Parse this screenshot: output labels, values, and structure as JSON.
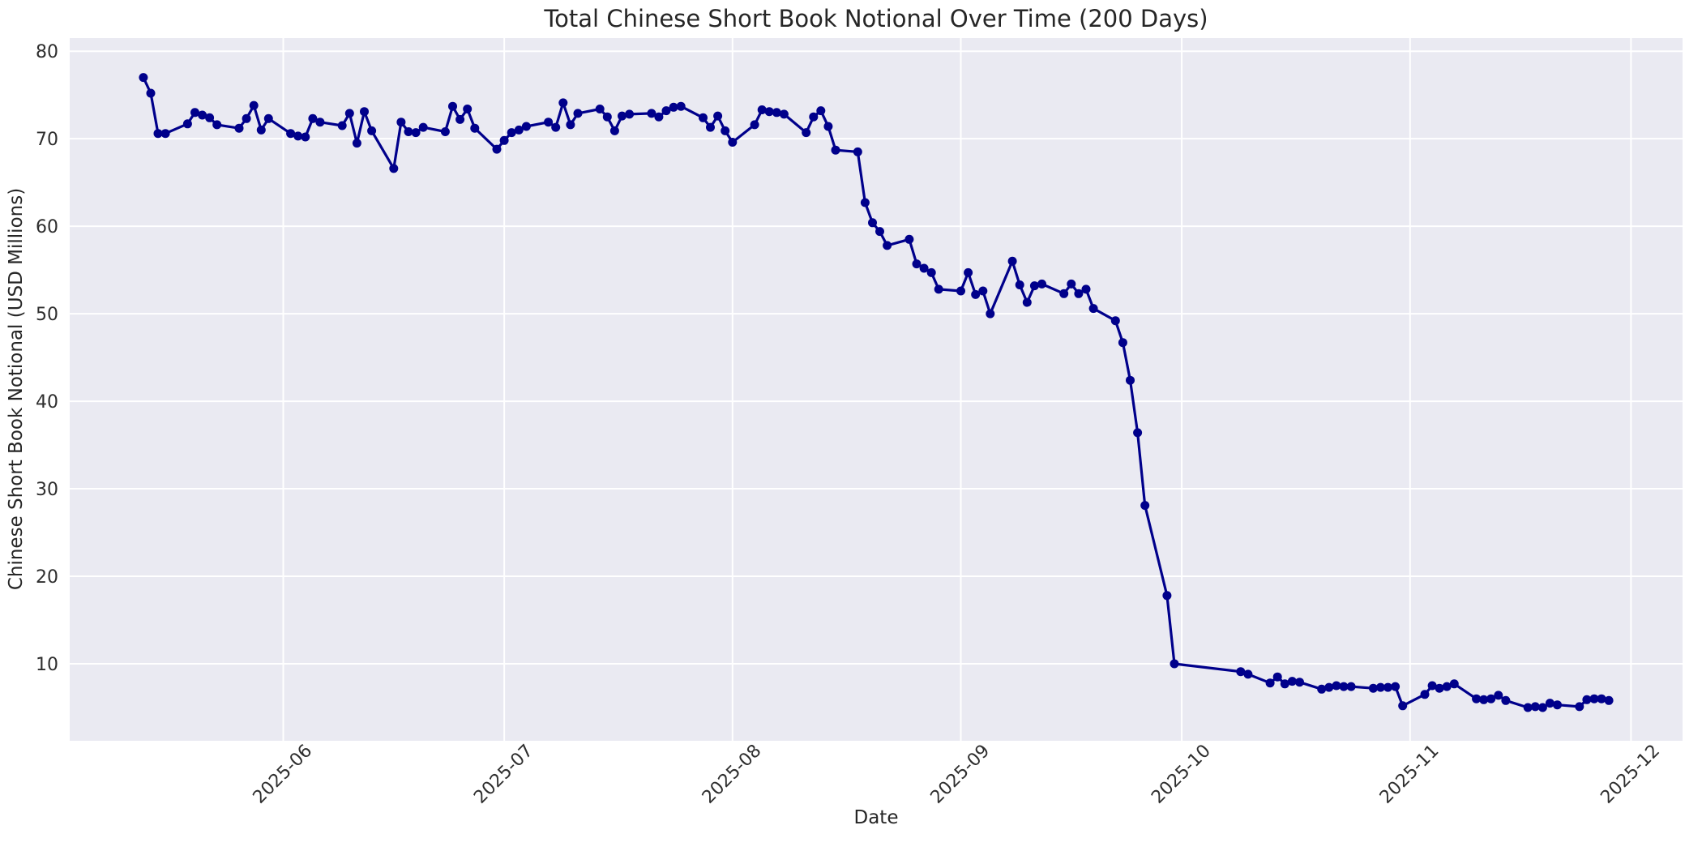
{
  "figure": {
    "background": "#ffffff",
    "plot_background": "#eaeaf2",
    "grid_color": "#ffffff",
    "text_color": "#262626",
    "line_color": "#00008b",
    "marker_color": "#00008b"
  },
  "title": "Total Chinese Short Book Notional Over Time (200 Days)",
  "axes": {
    "xlabel": "Date",
    "ylabel": "Chinese Short Book Notional (USD Millions)",
    "x_tick_labels": [
      "2025-06",
      "2025-07",
      "2025-08",
      "2025-09",
      "2025-10",
      "2025-11",
      "2025-12"
    ],
    "x_tick_dates": [
      "2025-06-01",
      "2025-07-01",
      "2025-08-01",
      "2025-09-01",
      "2025-10-01",
      "2025-11-01",
      "2025-12-01"
    ],
    "y_tick_values": [
      10,
      20,
      30,
      40,
      50,
      60,
      70,
      80
    ],
    "x_range": [
      "2025-05-03",
      "2025-12-08"
    ],
    "y_range": [
      1.2,
      81.5
    ],
    "x_tick_rotation": -45,
    "grid": true
  },
  "chart_data": {
    "type": "line",
    "title": "Total Chinese Short Book Notional Over Time (200 Days)",
    "xlabel": "Date",
    "ylabel": "Chinese Short Book Notional (USD Millions)",
    "legend": false,
    "ylim": [
      1.2,
      81.5
    ],
    "x": [
      "2025-05-13",
      "2025-05-14",
      "2025-05-15",
      "2025-05-16",
      "2025-05-19",
      "2025-05-20",
      "2025-05-21",
      "2025-05-22",
      "2025-05-23",
      "2025-05-26",
      "2025-05-27",
      "2025-05-28",
      "2025-05-29",
      "2025-05-30",
      "2025-06-02",
      "2025-06-03",
      "2025-06-04",
      "2025-06-05",
      "2025-06-06",
      "2025-06-09",
      "2025-06-10",
      "2025-06-11",
      "2025-06-12",
      "2025-06-13",
      "2025-06-16",
      "2025-06-17",
      "2025-06-18",
      "2025-06-19",
      "2025-06-20",
      "2025-06-23",
      "2025-06-24",
      "2025-06-25",
      "2025-06-26",
      "2025-06-27",
      "2025-06-30",
      "2025-07-01",
      "2025-07-02",
      "2025-07-03",
      "2025-07-04",
      "2025-07-07",
      "2025-07-08",
      "2025-07-09",
      "2025-07-10",
      "2025-07-11",
      "2025-07-14",
      "2025-07-15",
      "2025-07-16",
      "2025-07-17",
      "2025-07-18",
      "2025-07-21",
      "2025-07-22",
      "2025-07-23",
      "2025-07-24",
      "2025-07-25",
      "2025-07-28",
      "2025-07-29",
      "2025-07-30",
      "2025-07-31",
      "2025-08-01",
      "2025-08-04",
      "2025-08-05",
      "2025-08-06",
      "2025-08-07",
      "2025-08-08",
      "2025-08-11",
      "2025-08-12",
      "2025-08-13",
      "2025-08-14",
      "2025-08-15",
      "2025-08-18",
      "2025-08-19",
      "2025-08-20",
      "2025-08-21",
      "2025-08-22",
      "2025-08-25",
      "2025-08-26",
      "2025-08-27",
      "2025-08-28",
      "2025-08-29",
      "2025-09-01",
      "2025-09-02",
      "2025-09-03",
      "2025-09-04",
      "2025-09-05",
      "2025-09-08",
      "2025-09-09",
      "2025-09-10",
      "2025-09-11",
      "2025-09-12",
      "2025-09-15",
      "2025-09-16",
      "2025-09-17",
      "2025-09-18",
      "2025-09-19",
      "2025-09-22",
      "2025-09-23",
      "2025-09-24",
      "2025-09-25",
      "2025-09-26",
      "2025-09-29",
      "2025-09-30",
      "2025-10-09",
      "2025-10-10",
      "2025-10-13",
      "2025-10-14",
      "2025-10-15",
      "2025-10-16",
      "2025-10-17",
      "2025-10-20",
      "2025-10-21",
      "2025-10-22",
      "2025-10-23",
      "2025-10-24",
      "2025-10-27",
      "2025-10-28",
      "2025-10-29",
      "2025-10-30",
      "2025-10-31",
      "2025-11-03",
      "2025-11-04",
      "2025-11-05",
      "2025-11-06",
      "2025-11-07",
      "2025-11-10",
      "2025-11-11",
      "2025-11-12",
      "2025-11-13",
      "2025-11-14",
      "2025-11-17",
      "2025-11-18",
      "2025-11-19",
      "2025-11-20",
      "2025-11-21",
      "2025-11-24",
      "2025-11-25",
      "2025-11-26",
      "2025-11-27",
      "2025-11-28"
    ],
    "series": [
      {
        "name": "Total Chinese Short Book Notional",
        "values": [
          77.0,
          75.2,
          70.6,
          70.6,
          71.7,
          73.0,
          72.7,
          72.4,
          71.6,
          71.2,
          72.3,
          73.8,
          71.0,
          72.3,
          70.6,
          70.3,
          70.2,
          72.3,
          71.9,
          71.5,
          72.9,
          69.5,
          73.1,
          70.9,
          66.6,
          71.9,
          70.8,
          70.7,
          71.3,
          70.8,
          73.7,
          72.2,
          73.4,
          71.2,
          68.8,
          69.8,
          70.7,
          71.0,
          71.4,
          71.9,
          71.3,
          74.1,
          71.6,
          72.9,
          73.4,
          72.5,
          70.9,
          72.6,
          72.8,
          72.9,
          72.5,
          73.2,
          73.6,
          73.7,
          72.4,
          71.3,
          72.6,
          70.9,
          69.6,
          71.6,
          73.3,
          73.1,
          73.0,
          72.8,
          70.7,
          72.5,
          73.2,
          71.4,
          68.7,
          68.5,
          62.7,
          60.4,
          59.4,
          57.8,
          58.5,
          55.7,
          55.2,
          54.7,
          52.8,
          52.6,
          54.7,
          52.2,
          52.6,
          50.0,
          56.0,
          53.3,
          51.3,
          53.2,
          53.4,
          52.3,
          53.4,
          52.3,
          52.8,
          50.6,
          49.2,
          46.7,
          42.4,
          36.4,
          28.1,
          17.8,
          10.0,
          9.1,
          8.8,
          7.8,
          8.5,
          7.7,
          8.0,
          7.9,
          7.1,
          7.3,
          7.5,
          7.4,
          7.4,
          7.2,
          7.3,
          7.3,
          7.4,
          5.2,
          6.5,
          7.5,
          7.2,
          7.4,
          7.7,
          6.0,
          5.9,
          6.0,
          6.4,
          5.8,
          5.0,
          5.1,
          5.0,
          5.5,
          5.3,
          5.1,
          5.9,
          6.0,
          6.0,
          5.8
        ]
      }
    ]
  }
}
